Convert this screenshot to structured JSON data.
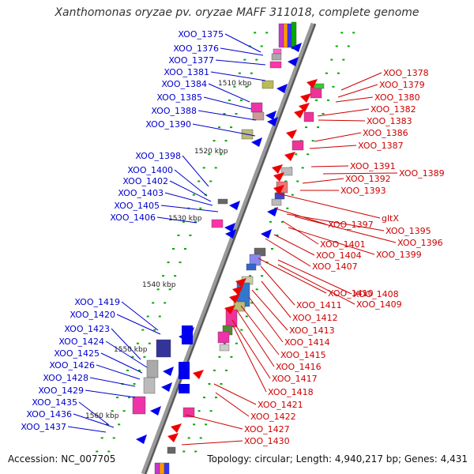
{
  "title": "Xanthomonas oryzae pv. oryzae MAFF 311018, complete genome",
  "accession": "Accession: NC_007705",
  "topology": "Topology: circular; Length: 4,940,217 bp; Genes: 4,431",
  "colors": {
    "left_labels": "#0000cc",
    "right_labels": "#cc0000",
    "forward_arrow": "#0000ee",
    "reverse_arrow": "#ee0000",
    "backbone": "#888888",
    "tick": "#00aa00"
  },
  "kbp_marks": [
    "1510 kbp",
    "1520 kbp",
    "1530 kbp",
    "1540 kbp",
    "1550 kbp",
    "1560 kbp"
  ],
  "left_genes": [
    "XOO_1375",
    "XOO_1376",
    "XOO_1377",
    "XOO_1381",
    "XOO_1384",
    "XOO_1385",
    "XOO_1388",
    "XOO_1390",
    "XOO_1398",
    "XOO_1400",
    "XOO_1402",
    "XOO_1403",
    "XOO_1405",
    "XOO_1406",
    "XOO_1419",
    "XOO_1420",
    "XOO_1423",
    "XOO_1424",
    "XOO_1425",
    "XOO_1426",
    "XOO_1428",
    "XOO_1429",
    "XOO_1435",
    "XOO_1436",
    "XOO_1437"
  ],
  "right_genes": [
    "XOO_1378",
    "XOO_1379",
    "XOO_1380",
    "XOO_1382",
    "XOO_1383",
    "XOO_1386",
    "XOO_1387",
    "XOO_1391",
    "XOO_1389",
    "XOO_1392",
    "XOO_1393",
    "gltX",
    "XOO_1397",
    "XOO_1395",
    "XOO_1396",
    "XOO_1401",
    "XOO_1399",
    "XOO_1404",
    "XOO_1407",
    "XOO_1410",
    "XOO_1408",
    "XOO_1409",
    "XOO_1411",
    "XOO_1412",
    "XOO_1413",
    "XOO_1414",
    "XOO_1415",
    "XOO_1416",
    "XOO_1417",
    "XOO_1418",
    "XOO_1421",
    "XOO_1422",
    "XOO_1427",
    "XOO_1430"
  ]
}
